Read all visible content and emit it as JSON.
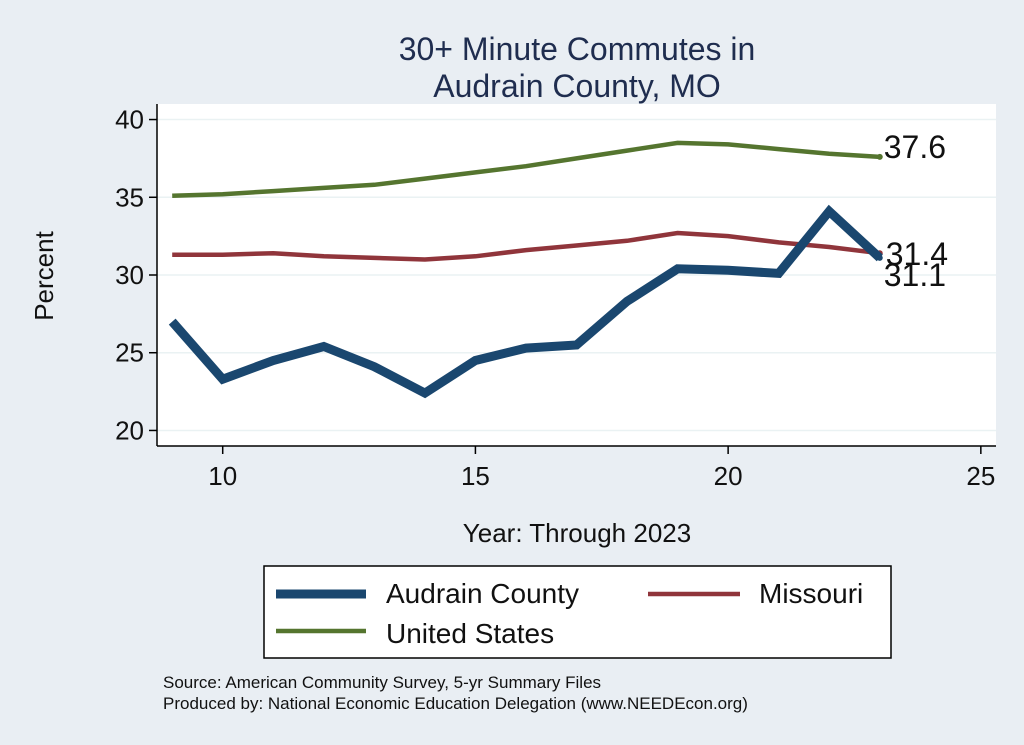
{
  "chart_data": {
    "type": "line",
    "title_lines": [
      "30+ Minute Commutes in",
      "Audrain County, MO"
    ],
    "xlabel": "Year: Through 2023",
    "ylabel": "Percent",
    "xlim": [
      8.7,
      25.3
    ],
    "ylim": [
      19.0,
      41.0
    ],
    "xticks": [
      10,
      15,
      20,
      25
    ],
    "yticks": [
      20,
      25,
      30,
      35,
      40
    ],
    "grid": true,
    "legend_position": "bottom",
    "series": [
      {
        "name": "Audrain County",
        "color": "#1a476f",
        "x": [
          9,
          10,
          11,
          12,
          13,
          14,
          15,
          16,
          17,
          18,
          19,
          20,
          21,
          22,
          23
        ],
        "values": [
          27.0,
          23.3,
          24.5,
          25.4,
          24.1,
          22.4,
          24.5,
          25.3,
          25.5,
          28.3,
          30.4,
          30.3,
          30.1,
          34.1,
          31.1
        ],
        "end_label": "31.1"
      },
      {
        "name": "Missouri",
        "color": "#90353b",
        "x": [
          9,
          10,
          11,
          12,
          13,
          14,
          15,
          16,
          17,
          18,
          19,
          20,
          21,
          22,
          23
        ],
        "values": [
          31.3,
          31.3,
          31.4,
          31.2,
          31.1,
          31.0,
          31.2,
          31.6,
          31.9,
          32.2,
          32.7,
          32.5,
          32.1,
          31.8,
          31.4
        ],
        "end_label": "31.4"
      },
      {
        "name": "United States",
        "color": "#55752f",
        "x": [
          9,
          10,
          11,
          12,
          13,
          14,
          15,
          16,
          17,
          18,
          19,
          20,
          21,
          22,
          23
        ],
        "values": [
          35.1,
          35.2,
          35.4,
          35.6,
          35.8,
          36.2,
          36.6,
          37.0,
          37.5,
          38.0,
          38.5,
          38.4,
          38.1,
          37.8,
          37.6
        ],
        "end_label": "37.6"
      }
    ],
    "source_lines": [
      "Source: American Community Survey, 5-yr Summary Files",
      "Produced by: National Economic Education Delegation (www.NEEDEcon.org)"
    ]
  }
}
